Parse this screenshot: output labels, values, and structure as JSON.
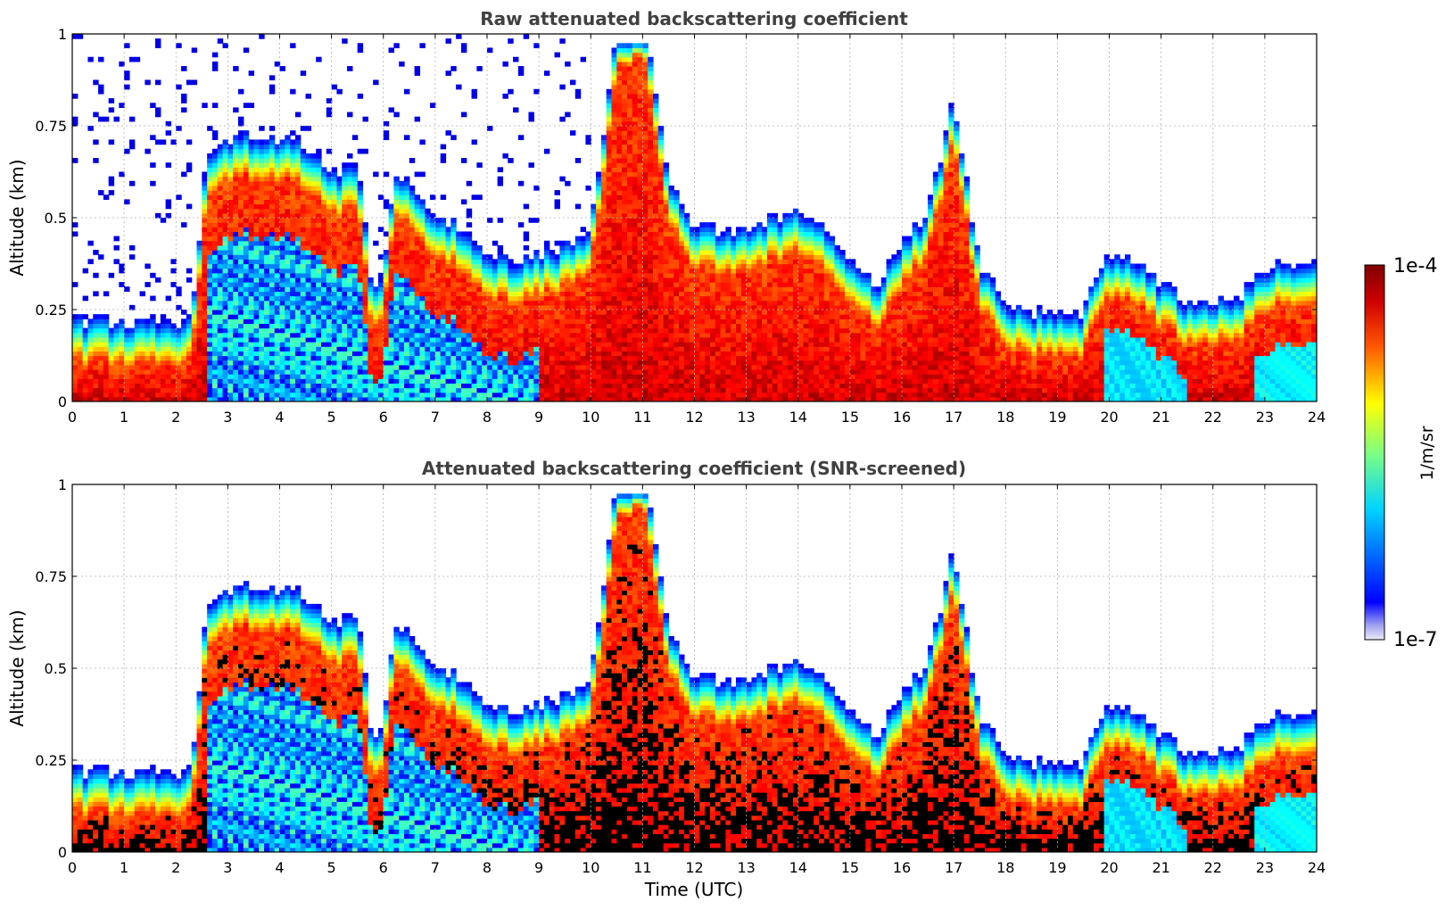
{
  "chart_data": [
    {
      "type": "heatmap",
      "title": "Raw attenuated backscattering coefficient",
      "xlabel": "",
      "ylabel": "Altitude (km)",
      "xlim": [
        0,
        24
      ],
      "ylim": [
        0,
        1
      ],
      "x_ticks": [
        "0",
        "1",
        "2",
        "3",
        "4",
        "5",
        "6",
        "7",
        "8",
        "9",
        "10",
        "11",
        "12",
        "13",
        "14",
        "15",
        "16",
        "17",
        "18",
        "19",
        "20",
        "21",
        "22",
        "23",
        "24"
      ],
      "y_ticks": [
        "0",
        "0.25",
        "0.5",
        "0.75",
        "1"
      ],
      "grid": true,
      "colormap": "jet",
      "screened": false,
      "layer_top_km": [
        [
          0,
          0.1
        ],
        [
          1,
          0.1
        ],
        [
          2,
          0.1
        ],
        [
          2.3,
          0.1
        ],
        [
          2.6,
          0.55
        ],
        [
          3,
          0.6
        ],
        [
          3.5,
          0.6
        ],
        [
          4,
          0.6
        ],
        [
          4.5,
          0.58
        ],
        [
          5,
          0.5
        ],
        [
          5.5,
          0.52
        ],
        [
          5.8,
          0.18
        ],
        [
          6,
          0.22
        ],
        [
          6.2,
          0.5
        ],
        [
          6.6,
          0.45
        ],
        [
          7,
          0.4
        ],
        [
          7.5,
          0.35
        ],
        [
          8,
          0.28
        ],
        [
          8.5,
          0.27
        ],
        [
          9,
          0.28
        ],
        [
          9.5,
          0.3
        ],
        [
          10,
          0.35
        ],
        [
          10.5,
          0.9
        ],
        [
          11,
          0.95
        ],
        [
          11.5,
          0.5
        ],
        [
          12,
          0.35
        ],
        [
          12.5,
          0.35
        ],
        [
          13,
          0.35
        ],
        [
          13.5,
          0.38
        ],
        [
          14,
          0.4
        ],
        [
          14.5,
          0.35
        ],
        [
          15,
          0.25
        ],
        [
          15.5,
          0.2
        ],
        [
          16,
          0.3
        ],
        [
          16.5,
          0.4
        ],
        [
          17,
          0.7
        ],
        [
          17.5,
          0.25
        ],
        [
          18,
          0.15
        ],
        [
          18.5,
          0.12
        ],
        [
          19,
          0.12
        ],
        [
          19.5,
          0.12
        ],
        [
          19.8,
          0.25
        ],
        [
          20,
          0.28
        ],
        [
          20.5,
          0.27
        ],
        [
          21,
          0.2
        ],
        [
          21.5,
          0.15
        ],
        [
          22,
          0.15
        ],
        [
          22.5,
          0.17
        ],
        [
          23,
          0.25
        ],
        [
          23.5,
          0.25
        ],
        [
          24,
          0.25
        ]
      ]
    },
    {
      "type": "heatmap",
      "title": "Attenuated backscattering coefficient (SNR-screened)",
      "xlabel": "Time (UTC)",
      "ylabel": "Altitude (km)",
      "xlim": [
        0,
        24
      ],
      "ylim": [
        0,
        1
      ],
      "x_ticks": [
        "0",
        "1",
        "2",
        "3",
        "4",
        "5",
        "6",
        "7",
        "8",
        "9",
        "10",
        "11",
        "12",
        "13",
        "14",
        "15",
        "16",
        "17",
        "18",
        "19",
        "20",
        "21",
        "22",
        "23",
        "24"
      ],
      "y_ticks": [
        "0",
        "0.25",
        "0.5",
        "0.75",
        "1"
      ],
      "grid": true,
      "colormap": "jet",
      "screened": true
    }
  ],
  "colorbar": {
    "max_label": "1e-4",
    "min_label": "1e-7",
    "unit": "1/m/sr",
    "min_exp": -7,
    "max_exp": -4
  }
}
